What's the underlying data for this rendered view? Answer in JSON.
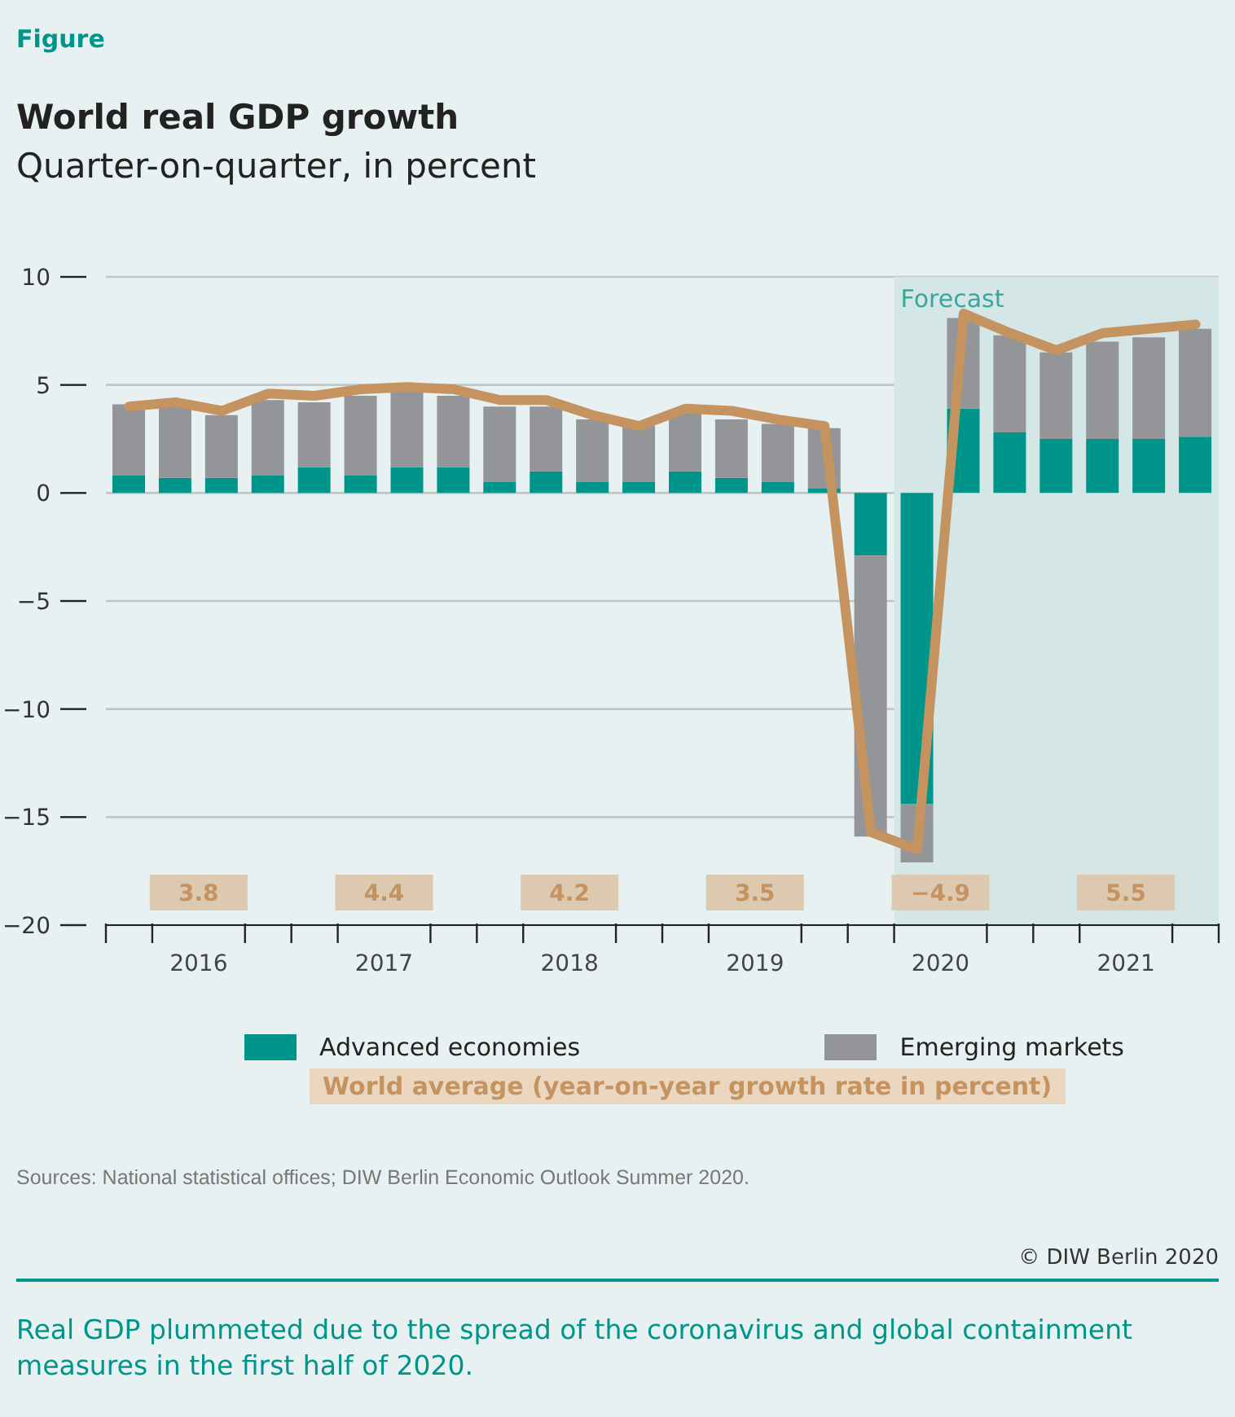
{
  "chart_data": {
    "type": "bar",
    "title": "World real GDP growth",
    "subtitle": "Quarter-on-quarter, in percent",
    "x": [
      2016.125,
      2016.375,
      2016.625,
      2016.875,
      2017.125,
      2017.375,
      2017.625,
      2017.875,
      2018.125,
      2018.375,
      2018.625,
      2018.875,
      2019.125,
      2019.375,
      2019.625,
      2019.875,
      2020.125,
      2020.375,
      2020.625,
      2020.875,
      2021.125,
      2021.375,
      2021.625,
      2021.875
    ],
    "stacked": true,
    "series": [
      {
        "name": "Advanced economies",
        "color": "#00958a",
        "values": [
          0.8,
          0.7,
          0.7,
          0.8,
          1.2,
          0.8,
          1.2,
          1.2,
          0.5,
          1.0,
          0.5,
          0.5,
          1.0,
          0.7,
          0.5,
          0.2,
          -2.9,
          -14.4,
          3.9,
          2.8,
          2.5,
          2.5,
          2.5,
          2.6
        ]
      },
      {
        "name": "Emerging markets",
        "color": "#939598",
        "values": [
          3.3,
          3.3,
          2.9,
          3.5,
          3.0,
          3.7,
          3.5,
          3.3,
          3.5,
          3.0,
          2.9,
          2.6,
          2.8,
          2.7,
          2.7,
          2.8,
          -13.0,
          -2.7,
          4.2,
          4.5,
          4.0,
          4.5,
          4.7,
          5.0
        ]
      },
      {
        "type": "line",
        "color": "#c4935f",
        "values": [
          4.0,
          4.2,
          3.8,
          4.6,
          4.5,
          4.8,
          4.9,
          4.8,
          4.3,
          4.3,
          3.6,
          3.1,
          3.9,
          3.8,
          3.4,
          3.1,
          -15.7,
          -16.5,
          8.3,
          7.4,
          6.6,
          7.4,
          7.6,
          7.8
        ]
      }
    ],
    "xlim": [
      2016,
      2022
    ],
    "xticks": [
      {
        "value": 2016,
        "label": null
      },
      {
        "value": 2016.25,
        "label": null
      },
      {
        "value": 2016.5,
        "label": "2016"
      },
      {
        "value": 2016.75,
        "label": null
      },
      {
        "value": 2017,
        "label": null
      },
      {
        "value": 2017.25,
        "label": null
      },
      {
        "value": 2017.5,
        "label": "2017"
      },
      {
        "value": 2017.75,
        "label": null
      },
      {
        "value": 2018,
        "label": null
      },
      {
        "value": 2018.25,
        "label": null
      },
      {
        "value": 2018.5,
        "label": "2018"
      },
      {
        "value": 2018.75,
        "label": null
      },
      {
        "value": 2019,
        "label": null
      },
      {
        "value": 2019.25,
        "label": null
      },
      {
        "value": 2019.5,
        "label": "2019"
      },
      {
        "value": 2019.75,
        "label": null
      },
      {
        "value": 2020,
        "label": null
      },
      {
        "value": 2020.25,
        "label": null
      },
      {
        "value": 2020.5,
        "label": "2020"
      },
      {
        "value": 2020.75,
        "label": null
      },
      {
        "value": 2021,
        "label": null
      },
      {
        "value": 2021.25,
        "label": null
      },
      {
        "value": 2021.5,
        "label": "2021"
      },
      {
        "value": 2021.75,
        "label": null
      },
      {
        "value": 2022,
        "label": null
      }
    ],
    "ylim": [
      -20,
      10
    ],
    "yticks": [
      {
        "value": -20,
        "label": "−20"
      },
      {
        "value": -15,
        "label": "−15"
      },
      {
        "value": -10,
        "label": "−10"
      },
      {
        "value": -5,
        "label": "−5"
      },
      0,
      5,
      10
    ],
    "grid": "y",
    "legend": "bottom",
    "marker": "none",
    "line_style": "solid",
    "bands": [
      {
        "axis": "x",
        "from": 2020.25,
        "to": 2022,
        "label": "Forecast",
        "color": "#d4e6e6"
      }
    ],
    "annotations": [
      "Figure",
      "World average (year-on-year growth rate in percent)",
      "Sources: National statistical offices; DIW Berlin Economic Outlook Summer 2020.",
      "© DIW Berlin 2020",
      "Real GDP plummeted due to the spread of the coronavirus and global containment measures in the first half of 2020.",
      "3.8",
      "4.4",
      "4.2",
      "3.5",
      "−4.9",
      "5.5"
    ]
  }
}
